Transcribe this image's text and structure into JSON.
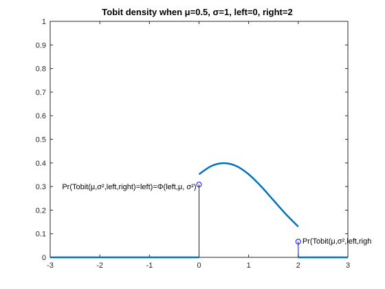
{
  "chart_data": {
    "type": "line",
    "title": "Tobit density when μ=0.5, σ=1, left=0, right=2",
    "xlabel": "",
    "ylabel": "",
    "xlim": [
      -3,
      3
    ],
    "ylim": [
      0,
      1
    ],
    "x_ticks": [
      -3,
      -2,
      -1,
      0,
      1,
      2,
      3
    ],
    "y_ticks": [
      0,
      0.1,
      0.2,
      0.3,
      0.4,
      0.5,
      0.6,
      0.7,
      0.8,
      0.9,
      1
    ],
    "grid": false,
    "colors": {
      "curve": "#0072BD",
      "stem": "#0000FF",
      "axis": "#262626"
    },
    "series": [
      {
        "segment": "below-left",
        "x": [
          -3,
          0
        ],
        "y": [
          0,
          0
        ]
      },
      {
        "segment": "interior",
        "x": [
          0,
          0.25,
          0.5,
          0.75,
          1.0,
          1.25,
          1.5,
          1.75,
          2.0
        ],
        "y": [
          0.352,
          0.387,
          0.399,
          0.387,
          0.352,
          0.301,
          0.242,
          0.183,
          0.13
        ]
      },
      {
        "segment": "above-right",
        "x": [
          2,
          3
        ],
        "y": [
          0,
          0
        ]
      }
    ],
    "stems": [
      {
        "x": 0,
        "y": 0.3085,
        "label": "Pr(Tobit(μ,σ²,left,right)=left)=Φ(left,μ, σ²)"
      },
      {
        "x": 2,
        "y": 0.0668,
        "label": "Pr(Tobit(μ,σ²,left,righ"
      }
    ]
  }
}
